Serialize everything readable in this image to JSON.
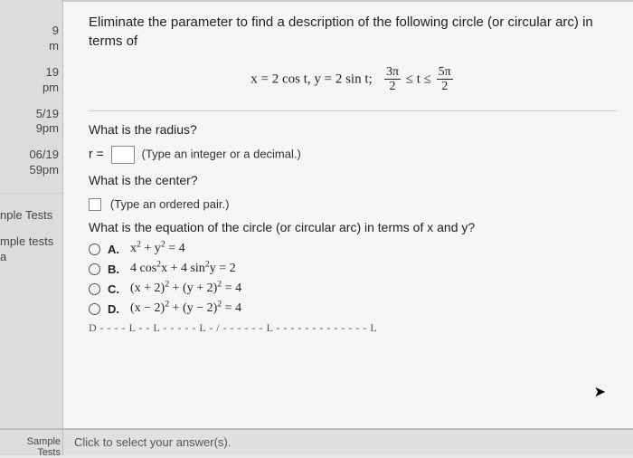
{
  "sidebar": {
    "items": [
      {
        "t1": "",
        "t2": ""
      },
      {
        "t1": "9",
        "t2": "m"
      },
      {
        "t1": "19",
        "t2": "pm"
      },
      {
        "t1": "5/19",
        "t2": "9pm"
      },
      {
        "t1": "06/19",
        "t2": "59pm"
      }
    ],
    "tests_label_1": "nple Tests",
    "tests_label_2": "mple tests a",
    "bottom_label": "Sample Tests"
  },
  "main": {
    "stem": "Eliminate the parameter to find a description of the following circle (or circular arc) in terms of",
    "eq_lhs": "x = 2 cos t, y = 2 sin t;",
    "frac1_num": "3π",
    "frac1_den": "2",
    "ineq": "≤ t ≤",
    "frac2_num": "5π",
    "frac2_den": "2",
    "q1": "What is the radius?",
    "r_label": "r =",
    "r_hint": "(Type an integer or a decimal.)",
    "q2": "What is the center?",
    "c_hint": "(Type an ordered pair.)",
    "q3": "What is the equation of the circle (or circular arc) in terms of x and y?",
    "options": [
      {
        "letter": "A.",
        "html": "x<sup>2</sup> + y<sup>2</sup> = 4"
      },
      {
        "letter": "B.",
        "html": "4 cos<sup>2</sup>x + 4 sin<sup>2</sup>y = 2"
      },
      {
        "letter": "C.",
        "html": "(x + 2)<sup>2</sup> + (y + 2)<sup>2</sup> = 4"
      },
      {
        "letter": "D.",
        "html": "(x − 2)<sup>2</sup> + (y − 2)<sup>2</sup> = 4"
      }
    ],
    "truncated_line": "D - - - - L  - - L -  - - - - L -  / - - - - - - L - - - - - - - -  - - - - - L",
    "bottom_bar": "Click to select your answer(s)."
  }
}
